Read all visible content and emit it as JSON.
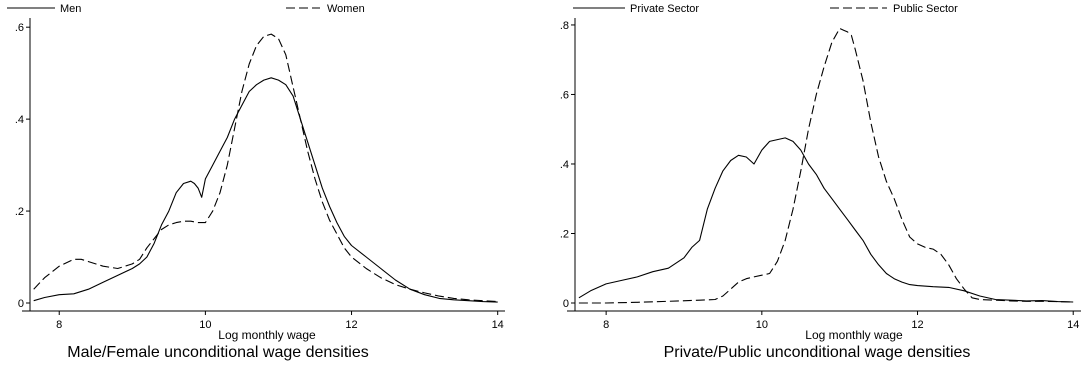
{
  "chart_data": [
    {
      "type": "line",
      "title": "Male/Female unconditional wage densities",
      "xlabel": "Log monthly wage",
      "ylabel": "",
      "xlim": [
        7.6,
        14.1
      ],
      "ylim": [
        0,
        0.62
      ],
      "xticks": [
        8,
        10,
        12,
        14
      ],
      "yticks": [
        0,
        0.2,
        0.4,
        0.6
      ],
      "xtick_labels": [
        "8",
        "10",
        "12",
        "14"
      ],
      "ytick_labels": [
        "0",
        ".2",
        ".4",
        ".6"
      ],
      "grid": false,
      "legend_position": "top",
      "series": [
        {
          "name": "Men",
          "style": "solid",
          "color": "#000000",
          "x": [
            7.65,
            7.8,
            8.0,
            8.2,
            8.4,
            8.6,
            8.8,
            9.0,
            9.1,
            9.2,
            9.3,
            9.4,
            9.5,
            9.6,
            9.7,
            9.8,
            9.85,
            9.9,
            9.95,
            10.0,
            10.1,
            10.2,
            10.3,
            10.4,
            10.5,
            10.6,
            10.7,
            10.8,
            10.9,
            11.0,
            11.1,
            11.2,
            11.3,
            11.4,
            11.5,
            11.6,
            11.7,
            11.8,
            11.9,
            12.0,
            12.2,
            12.4,
            12.6,
            12.8,
            13.0,
            13.2,
            13.4,
            13.6,
            13.8,
            14.0
          ],
          "y": [
            0.005,
            0.012,
            0.018,
            0.02,
            0.03,
            0.045,
            0.06,
            0.075,
            0.085,
            0.1,
            0.13,
            0.17,
            0.2,
            0.24,
            0.26,
            0.265,
            0.26,
            0.25,
            0.23,
            0.27,
            0.3,
            0.33,
            0.36,
            0.4,
            0.43,
            0.46,
            0.475,
            0.485,
            0.49,
            0.485,
            0.475,
            0.45,
            0.4,
            0.35,
            0.3,
            0.25,
            0.21,
            0.175,
            0.145,
            0.125,
            0.1,
            0.075,
            0.05,
            0.03,
            0.018,
            0.01,
            0.007,
            0.005,
            0.003,
            0.002
          ]
        },
        {
          "name": "Women",
          "style": "dashed",
          "color": "#000000",
          "x": [
            7.65,
            7.8,
            8.0,
            8.2,
            8.3,
            8.4,
            8.6,
            8.8,
            9.0,
            9.1,
            9.2,
            9.3,
            9.4,
            9.5,
            9.6,
            9.7,
            9.8,
            9.9,
            10.0,
            10.1,
            10.2,
            10.3,
            10.4,
            10.5,
            10.6,
            10.7,
            10.8,
            10.9,
            11.0,
            11.1,
            11.2,
            11.3,
            11.4,
            11.5,
            11.6,
            11.7,
            11.8,
            11.9,
            12.0,
            12.2,
            12.4,
            12.6,
            12.8,
            13.0,
            13.2,
            13.4,
            13.6,
            13.8,
            14.0
          ],
          "y": [
            0.03,
            0.055,
            0.08,
            0.095,
            0.095,
            0.09,
            0.08,
            0.075,
            0.085,
            0.095,
            0.12,
            0.14,
            0.16,
            0.17,
            0.175,
            0.178,
            0.178,
            0.175,
            0.175,
            0.2,
            0.24,
            0.3,
            0.38,
            0.46,
            0.52,
            0.56,
            0.58,
            0.585,
            0.575,
            0.54,
            0.47,
            0.4,
            0.33,
            0.27,
            0.22,
            0.18,
            0.15,
            0.12,
            0.1,
            0.075,
            0.055,
            0.04,
            0.03,
            0.022,
            0.015,
            0.01,
            0.007,
            0.005,
            0.003
          ]
        }
      ]
    },
    {
      "type": "line",
      "title": "Private/Public unconditional wage densities",
      "xlabel": "Log monthly wage",
      "ylabel": "",
      "xlim": [
        7.6,
        14.1
      ],
      "ylim": [
        0,
        0.82
      ],
      "xticks": [
        8,
        10,
        12,
        14
      ],
      "yticks": [
        0,
        0.2,
        0.4,
        0.6,
        0.8
      ],
      "xtick_labels": [
        "8",
        "10",
        "12",
        "14"
      ],
      "ytick_labels": [
        "0",
        ".2",
        ".4",
        ".6",
        ".8"
      ],
      "grid": false,
      "legend_position": "top",
      "series": [
        {
          "name": "Private Sector",
          "style": "solid",
          "color": "#000000",
          "x": [
            7.65,
            7.8,
            8.0,
            8.2,
            8.4,
            8.6,
            8.8,
            9.0,
            9.1,
            9.2,
            9.3,
            9.4,
            9.5,
            9.6,
            9.7,
            9.8,
            9.9,
            10.0,
            10.1,
            10.2,
            10.3,
            10.4,
            10.5,
            10.6,
            10.7,
            10.8,
            10.9,
            11.0,
            11.1,
            11.2,
            11.3,
            11.4,
            11.5,
            11.6,
            11.7,
            11.8,
            11.9,
            12.0,
            12.2,
            12.4,
            12.6,
            12.8,
            13.0,
            13.2,
            13.4,
            13.6,
            13.8,
            14.0
          ],
          "y": [
            0.015,
            0.035,
            0.055,
            0.065,
            0.075,
            0.09,
            0.1,
            0.13,
            0.16,
            0.18,
            0.27,
            0.33,
            0.38,
            0.41,
            0.425,
            0.42,
            0.4,
            0.44,
            0.465,
            0.47,
            0.475,
            0.465,
            0.44,
            0.4,
            0.37,
            0.33,
            0.3,
            0.27,
            0.24,
            0.21,
            0.18,
            0.14,
            0.11,
            0.085,
            0.07,
            0.06,
            0.053,
            0.05,
            0.047,
            0.045,
            0.035,
            0.02,
            0.01,
            0.008,
            0.006,
            0.007,
            0.004,
            0.003
          ]
        },
        {
          "name": "Public Sector",
          "style": "dashed",
          "color": "#000000",
          "x": [
            7.65,
            8.0,
            8.4,
            8.8,
            9.2,
            9.4,
            9.5,
            9.6,
            9.7,
            9.8,
            9.9,
            10.0,
            10.1,
            10.2,
            10.3,
            10.4,
            10.5,
            10.6,
            10.7,
            10.8,
            10.9,
            11.0,
            11.05,
            11.1,
            11.15,
            11.2,
            11.3,
            11.4,
            11.5,
            11.6,
            11.7,
            11.8,
            11.9,
            12.0,
            12.1,
            12.2,
            12.3,
            12.4,
            12.5,
            12.6,
            12.7,
            12.8,
            13.0,
            13.2,
            13.4,
            13.6,
            13.8,
            14.0
          ],
          "y": [
            0.0,
            0.0,
            0.002,
            0.005,
            0.008,
            0.01,
            0.02,
            0.04,
            0.06,
            0.07,
            0.075,
            0.08,
            0.085,
            0.12,
            0.18,
            0.27,
            0.38,
            0.5,
            0.6,
            0.68,
            0.75,
            0.79,
            0.785,
            0.78,
            0.77,
            0.73,
            0.64,
            0.52,
            0.42,
            0.35,
            0.3,
            0.24,
            0.19,
            0.17,
            0.16,
            0.155,
            0.14,
            0.11,
            0.07,
            0.04,
            0.015,
            0.01,
            0.008,
            0.006,
            0.005,
            0.005,
            0.004,
            0.003
          ]
        }
      ]
    }
  ]
}
